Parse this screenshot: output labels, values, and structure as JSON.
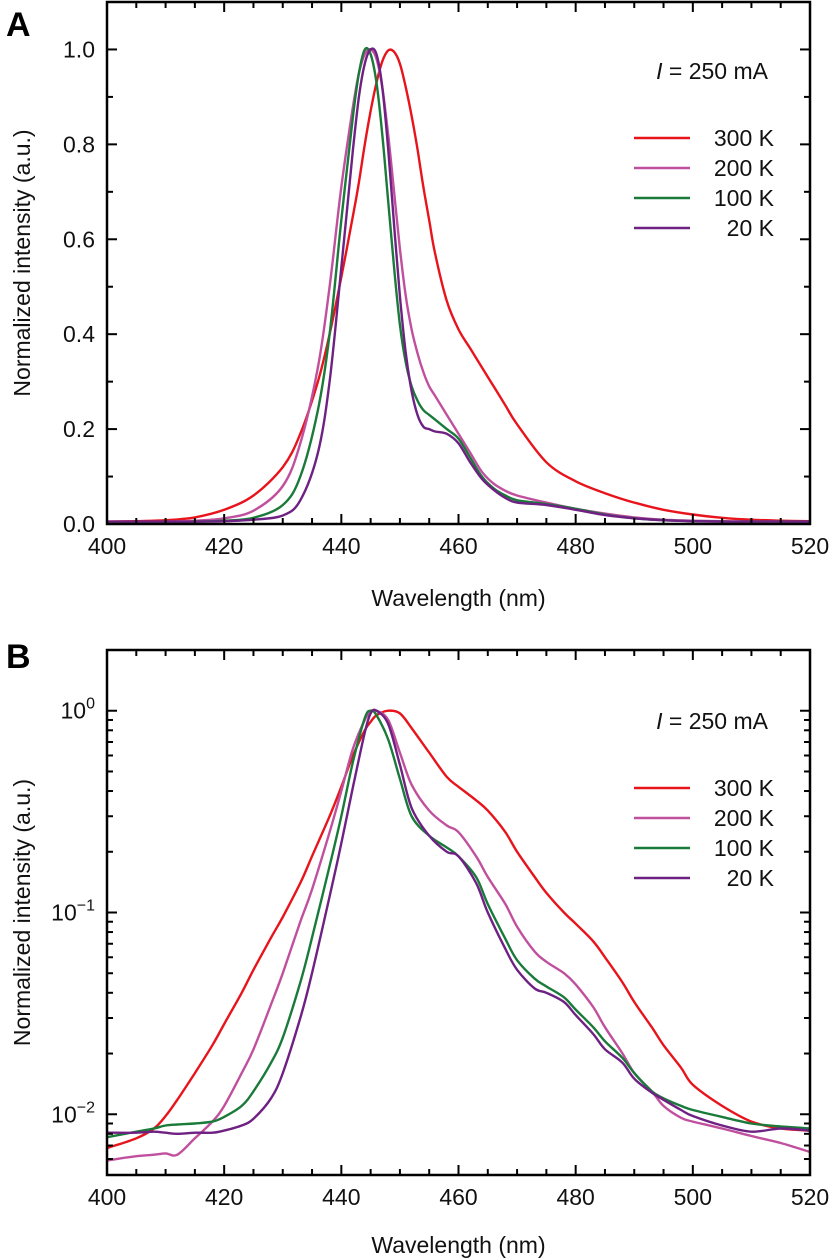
{
  "chart_data": [
    {
      "panel": "A",
      "type": "line",
      "title": "",
      "annotation": {
        "italic": "I",
        "rest": " = 250 mA"
      },
      "xlabel": "Wavelength (nm)",
      "ylabel": "Normalized intensity (a.u.)",
      "xlim": [
        400,
        520
      ],
      "ylim": [
        0,
        1.1
      ],
      "yscale": "linear",
      "xticks": [
        400,
        420,
        440,
        460,
        480,
        500,
        520
      ],
      "xtick_labels": [
        "400",
        "420",
        "440",
        "460",
        "480",
        "500",
        "520"
      ],
      "yticks": [
        0.0,
        0.2,
        0.4,
        0.6,
        0.8,
        1.0
      ],
      "ytick_labels": [
        "0.0",
        "0.2",
        "0.4",
        "0.6",
        "0.8",
        "1.0"
      ],
      "legend_position": "top-right",
      "x": [
        400,
        405,
        410,
        415,
        420,
        425,
        430,
        433,
        436,
        438,
        440,
        442,
        443,
        444,
        445,
        446,
        447,
        448,
        449,
        450,
        451,
        452,
        453,
        454,
        455,
        456,
        458,
        460,
        462,
        464,
        466,
        468,
        470,
        475,
        480,
        485,
        490,
        495,
        500,
        505,
        510,
        515,
        520
      ],
      "series": [
        {
          "name": "300 K",
          "color": "#e8141c",
          "values": [
            0.005,
            0.006,
            0.008,
            0.014,
            0.03,
            0.06,
            0.12,
            0.19,
            0.3,
            0.4,
            0.52,
            0.65,
            0.72,
            0.8,
            0.87,
            0.93,
            0.975,
            0.998,
            0.995,
            0.97,
            0.92,
            0.86,
            0.79,
            0.71,
            0.64,
            0.57,
            0.47,
            0.41,
            0.37,
            0.33,
            0.29,
            0.25,
            0.21,
            0.13,
            0.09,
            0.065,
            0.045,
            0.03,
            0.02,
            0.013,
            0.009,
            0.007,
            0.006
          ]
        },
        {
          "name": "200 K",
          "color": "#c0509e",
          "values": [
            0.004,
            0.004,
            0.005,
            0.007,
            0.012,
            0.028,
            0.08,
            0.17,
            0.33,
            0.5,
            0.71,
            0.88,
            0.95,
            0.99,
            1.0,
            0.98,
            0.92,
            0.82,
            0.7,
            0.58,
            0.48,
            0.41,
            0.36,
            0.32,
            0.29,
            0.27,
            0.23,
            0.19,
            0.15,
            0.11,
            0.085,
            0.07,
            0.06,
            0.045,
            0.032,
            0.022,
            0.014,
            0.009,
            0.007,
            0.006,
            0.005,
            0.005,
            0.004
          ]
        },
        {
          "name": "100 K",
          "color": "#1a7a3a",
          "values": [
            0.004,
            0.004,
            0.004,
            0.005,
            0.007,
            0.013,
            0.04,
            0.1,
            0.24,
            0.4,
            0.64,
            0.86,
            0.95,
            1.0,
            0.99,
            0.93,
            0.82,
            0.68,
            0.54,
            0.42,
            0.34,
            0.29,
            0.26,
            0.24,
            0.23,
            0.22,
            0.2,
            0.18,
            0.14,
            0.1,
            0.075,
            0.06,
            0.05,
            0.042,
            0.032,
            0.02,
            0.012,
            0.008,
            0.006,
            0.005,
            0.005,
            0.005,
            0.005
          ]
        },
        {
          "name": "20 K",
          "color": "#6e2182",
          "values": [
            0.005,
            0.005,
            0.005,
            0.005,
            0.006,
            0.009,
            0.018,
            0.05,
            0.15,
            0.3,
            0.54,
            0.79,
            0.9,
            0.97,
            1.0,
            0.99,
            0.92,
            0.79,
            0.63,
            0.48,
            0.36,
            0.28,
            0.23,
            0.205,
            0.2,
            0.195,
            0.19,
            0.17,
            0.13,
            0.095,
            0.072,
            0.055,
            0.045,
            0.04,
            0.03,
            0.019,
            0.012,
            0.008,
            0.006,
            0.005,
            0.005,
            0.005,
            0.005
          ]
        }
      ]
    },
    {
      "panel": "B",
      "type": "line",
      "title": "",
      "annotation": {
        "italic": "I",
        "rest": " = 250 mA"
      },
      "xlabel": "Wavelength (nm)",
      "ylabel": "Normalized intensity (a.u.)",
      "xlim": [
        400,
        520
      ],
      "ylim": [
        0.005,
        2
      ],
      "yscale": "log",
      "xticks": [
        400,
        420,
        440,
        460,
        480,
        500,
        520
      ],
      "xtick_labels": [
        "400",
        "420",
        "440",
        "460",
        "480",
        "500",
        "520"
      ],
      "yticks": [
        1,
        0.1,
        0.01
      ],
      "ytick_labels": [
        {
          "base": "10",
          "exp": "0"
        },
        {
          "base": "10",
          "exp": "−1"
        },
        {
          "base": "10",
          "exp": "−2"
        }
      ],
      "legend_position": "top-right",
      "x": [
        400,
        405,
        408,
        410,
        412,
        415,
        418,
        420,
        423,
        425,
        428,
        430,
        433,
        435,
        438,
        440,
        442,
        444,
        445,
        446,
        448,
        450,
        452,
        455,
        458,
        460,
        463,
        465,
        468,
        470,
        473,
        475,
        478,
        480,
        483,
        485,
        488,
        490,
        493,
        495,
        498,
        500,
        505,
        510,
        515,
        520
      ],
      "series": [
        {
          "name": "300 K",
          "color": "#e8141c",
          "values": [
            0.0068,
            0.0076,
            0.0085,
            0.0098,
            0.0118,
            0.016,
            0.022,
            0.028,
            0.04,
            0.052,
            0.075,
            0.095,
            0.14,
            0.19,
            0.3,
            0.42,
            0.6,
            0.8,
            0.88,
            0.95,
            1.0,
            0.97,
            0.82,
            0.62,
            0.47,
            0.42,
            0.36,
            0.32,
            0.25,
            0.2,
            0.15,
            0.125,
            0.1,
            0.088,
            0.072,
            0.06,
            0.045,
            0.036,
            0.027,
            0.022,
            0.017,
            0.014,
            0.011,
            0.0092,
            0.0085,
            0.0083
          ]
        },
        {
          "name": "200 K",
          "color": "#c0509e",
          "values": [
            0.0059,
            0.0062,
            0.0063,
            0.0064,
            0.0063,
            0.0076,
            0.0092,
            0.011,
            0.016,
            0.021,
            0.035,
            0.05,
            0.09,
            0.13,
            0.25,
            0.4,
            0.65,
            0.9,
            0.99,
            1.0,
            0.9,
            0.62,
            0.43,
            0.32,
            0.27,
            0.25,
            0.19,
            0.15,
            0.11,
            0.085,
            0.064,
            0.057,
            0.05,
            0.044,
            0.034,
            0.027,
            0.02,
            0.016,
            0.013,
            0.011,
            0.0096,
            0.0092,
            0.0085,
            0.0078,
            0.0072,
            0.0065
          ]
        },
        {
          "name": "100 K",
          "color": "#1a7a3a",
          "values": [
            0.0077,
            0.0082,
            0.0085,
            0.0088,
            0.0089,
            0.009,
            0.0092,
            0.0097,
            0.011,
            0.013,
            0.018,
            0.024,
            0.045,
            0.075,
            0.17,
            0.3,
            0.56,
            0.92,
            1.0,
            0.95,
            0.72,
            0.46,
            0.3,
            0.24,
            0.21,
            0.19,
            0.15,
            0.11,
            0.074,
            0.058,
            0.047,
            0.043,
            0.038,
            0.033,
            0.027,
            0.023,
            0.019,
            0.016,
            0.013,
            0.012,
            0.011,
            0.0105,
            0.0097,
            0.009,
            0.0087,
            0.0085
          ]
        },
        {
          "name": "20 K",
          "color": "#6e2182",
          "values": [
            0.0081,
            0.0081,
            0.0082,
            0.0081,
            0.008,
            0.0081,
            0.0081,
            0.0083,
            0.0088,
            0.0095,
            0.012,
            0.016,
            0.03,
            0.05,
            0.12,
            0.22,
            0.42,
            0.78,
            0.97,
            1.0,
            0.86,
            0.54,
            0.33,
            0.24,
            0.2,
            0.19,
            0.14,
            0.1,
            0.066,
            0.052,
            0.042,
            0.04,
            0.036,
            0.031,
            0.025,
            0.021,
            0.018,
            0.015,
            0.0128,
            0.0118,
            0.0105,
            0.0098,
            0.0088,
            0.0082,
            0.0085,
            0.0083
          ]
        }
      ]
    }
  ],
  "panels": {
    "A": {
      "label": "A"
    },
    "B": {
      "label": "B"
    }
  }
}
